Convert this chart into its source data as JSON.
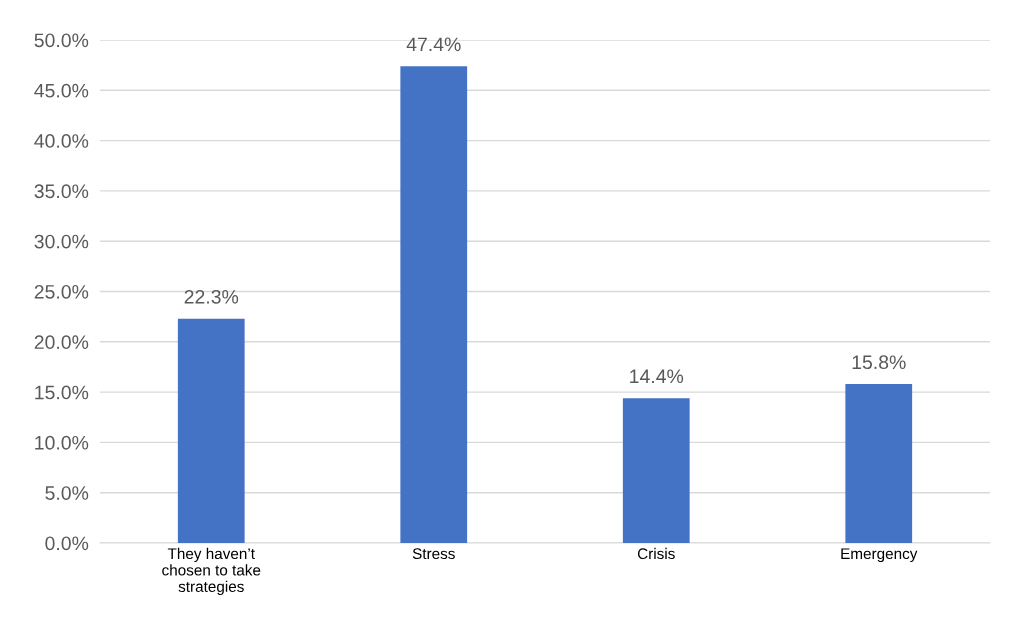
{
  "chart_data": {
    "type": "bar",
    "categories": [
      "They haven’t\nchosen to take\nstrategies",
      "Stress",
      "Crisis",
      "Emergency"
    ],
    "values": [
      22.3,
      47.4,
      14.4,
      15.8
    ],
    "color": "#4472c4",
    "value_labels": [
      "22.3%",
      "47.4%",
      "14.4%",
      "15.8%"
    ],
    "ylim": [
      0,
      50
    ],
    "yticks": [
      {
        "value": 0,
        "label": "0.0%"
      },
      {
        "value": 5,
        "label": "5.0%"
      },
      {
        "value": 10,
        "label": "10.0%"
      },
      {
        "value": 15,
        "label": "15.0%"
      },
      {
        "value": 20,
        "label": "20.0%"
      },
      {
        "value": 25,
        "label": "25.0%"
      },
      {
        "value": 30,
        "label": "30.0%"
      },
      {
        "value": 35,
        "label": "35.0%"
      },
      {
        "value": 40,
        "label": "40.0%"
      },
      {
        "value": 45,
        "label": "45.0%"
      },
      {
        "value": 50,
        "label": "50.0%"
      }
    ],
    "grid": "y"
  }
}
